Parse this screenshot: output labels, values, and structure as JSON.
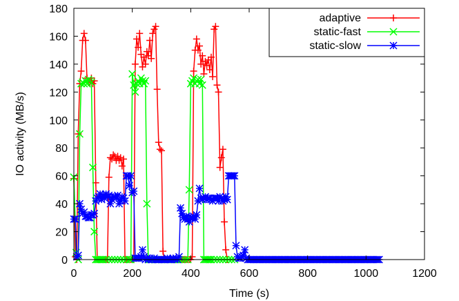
{
  "chart_data": {
    "type": "line",
    "xlabel": "Time (s)",
    "ylabel": "IO activity (MB/s)",
    "xlim": [
      0,
      1200
    ],
    "ylim": [
      0,
      180
    ],
    "xticks": [
      0,
      200,
      400,
      600,
      800,
      1000,
      1200
    ],
    "yticks": [
      0,
      20,
      40,
      60,
      80,
      100,
      120,
      140,
      160,
      180
    ],
    "grid": false,
    "legend_position": "top-right",
    "series": [
      {
        "name": "adaptive",
        "color": "#ff0000",
        "marker": "plus",
        "x": [
          0,
          5,
          10,
          15,
          20,
          25,
          30,
          35,
          40,
          45,
          50,
          55,
          60,
          65,
          70,
          75,
          80,
          85,
          90,
          95,
          100,
          105,
          110,
          115,
          120,
          125,
          130,
          135,
          140,
          145,
          150,
          155,
          160,
          165,
          170,
          175,
          180,
          185,
          190,
          195,
          200,
          205,
          210,
          215,
          220,
          225,
          230,
          235,
          240,
          245,
          250,
          255,
          260,
          265,
          270,
          275,
          280,
          285,
          290,
          295,
          300,
          305,
          310,
          315,
          320,
          325,
          330,
          335,
          340,
          345,
          350,
          355,
          360,
          365,
          370,
          375,
          380,
          385,
          390,
          395,
          400,
          405,
          410,
          415,
          420,
          425,
          430,
          435,
          440,
          445,
          450,
          455,
          460,
          465,
          470,
          475,
          480,
          485,
          490,
          495,
          500,
          505,
          510,
          515,
          520,
          525
        ],
        "y": [
          58,
          2,
          0,
          90,
          126,
          135,
          157,
          162,
          157,
          130,
          128,
          127,
          130,
          126,
          128,
          55,
          0,
          0,
          0,
          0,
          0,
          0,
          0,
          0,
          59,
          73,
          72,
          75,
          74,
          71,
          74,
          71,
          73,
          67,
          72,
          0,
          0,
          0,
          0,
          0,
          0,
          0,
          140,
          158,
          152,
          162,
          147,
          138,
          145,
          140,
          149,
          146,
          157,
          144,
          162,
          165,
          167,
          122,
          84,
          79,
          78,
          6,
          0,
          0,
          0,
          0,
          0,
          0,
          0,
          0,
          0,
          0,
          0,
          0,
          0,
          0,
          0,
          0,
          0,
          0,
          0,
          2,
          135,
          150,
          158,
          150,
          153,
          140,
          146,
          133,
          142,
          139,
          143,
          136,
          145,
          131,
          165,
          167,
          125,
          120,
          66,
          73,
          79,
          27,
          7,
          0
        ]
      },
      {
        "name": "static-fast",
        "color": "#00ff00",
        "marker": "cross",
        "x": [
          0,
          8,
          15,
          20,
          25,
          30,
          35,
          40,
          45,
          50,
          55,
          60,
          65,
          70,
          75,
          80,
          85,
          90,
          95,
          100,
          110,
          120,
          130,
          140,
          150,
          160,
          170,
          180,
          190,
          195,
          200,
          205,
          210,
          215,
          220,
          225,
          230,
          235,
          240,
          245,
          250,
          255,
          260,
          265,
          270,
          280,
          290,
          300,
          310,
          320,
          330,
          340,
          350,
          360,
          370,
          380,
          390,
          395,
          400,
          405,
          410,
          415,
          420,
          425,
          430,
          435,
          440,
          445,
          450,
          455,
          460,
          465,
          470,
          480,
          490,
          500,
          510,
          520,
          530,
          540,
          550
        ],
        "y": [
          59,
          5,
          0,
          90,
          126,
          127,
          126,
          128,
          126,
          129,
          128,
          127,
          66,
          20,
          0,
          0,
          0,
          0,
          0,
          0,
          0,
          0,
          0,
          0,
          0,
          0,
          0,
          0,
          0,
          0,
          133,
          125,
          120,
          126,
          128,
          126,
          130,
          128,
          126,
          128,
          40,
          0,
          0,
          0,
          0,
          0,
          0,
          0,
          0,
          0,
          0,
          0,
          0,
          0,
          0,
          0,
          0,
          50,
          126,
          128,
          130,
          126,
          128,
          129,
          126,
          129,
          125,
          0,
          0,
          0,
          0,
          0,
          0,
          0,
          0,
          0,
          0,
          0,
          0,
          0,
          0
        ]
      },
      {
        "name": "static-slow",
        "color": "#0000ff",
        "marker": "star",
        "x": [
          0,
          5,
          10,
          15,
          20,
          25,
          30,
          35,
          40,
          45,
          50,
          55,
          60,
          65,
          70,
          75,
          80,
          85,
          90,
          95,
          100,
          105,
          110,
          115,
          120,
          125,
          130,
          135,
          140,
          145,
          150,
          155,
          160,
          165,
          170,
          175,
          180,
          185,
          190,
          195,
          200,
          205,
          210,
          215,
          220,
          225,
          230,
          235,
          240,
          245,
          250,
          255,
          260,
          265,
          270,
          275,
          280,
          285,
          290,
          295,
          300,
          305,
          310,
          315,
          320,
          325,
          330,
          335,
          340,
          345,
          350,
          355,
          360,
          365,
          370,
          375,
          380,
          385,
          390,
          395,
          400,
          405,
          410,
          415,
          420,
          425,
          430,
          435,
          440,
          445,
          450,
          455,
          460,
          465,
          470,
          475,
          480,
          485,
          490,
          495,
          500,
          505,
          510,
          515,
          520,
          525,
          530,
          535,
          540,
          545,
          550,
          555,
          560,
          565,
          570,
          575,
          580,
          585,
          590,
          595,
          600,
          605,
          610,
          615,
          620,
          625,
          630,
          635,
          640,
          645,
          650,
          655,
          660,
          665,
          670,
          675,
          680,
          685,
          690,
          695,
          700,
          705,
          710,
          715,
          720,
          725,
          730,
          735,
          740,
          745,
          750,
          755,
          760,
          765,
          770,
          775,
          780,
          785,
          790,
          795,
          800,
          805,
          810,
          815,
          820,
          825,
          830,
          835,
          840,
          845,
          850,
          855,
          860,
          865,
          870,
          875,
          880,
          885,
          890,
          895,
          900,
          905,
          910,
          915,
          920,
          925,
          930,
          935,
          940,
          945,
          950,
          955,
          960,
          965,
          970,
          975,
          980,
          985,
          990,
          995,
          1000,
          1005,
          1010,
          1015,
          1020,
          1025,
          1030,
          1035,
          1040,
          1045
        ],
        "y": [
          29,
          29,
          2,
          3,
          40,
          36,
          33,
          34,
          31,
          31,
          30,
          30,
          32,
          32,
          33,
          42,
          44,
          45,
          47,
          43,
          46,
          44,
          47,
          45,
          46,
          40,
          43,
          45,
          45,
          44,
          46,
          40,
          42,
          45,
          44,
          42,
          60,
          60,
          53,
          60,
          48,
          49,
          1,
          1,
          1,
          1,
          2,
          7,
          2,
          0,
          1,
          0,
          1,
          0,
          0,
          1,
          0,
          0,
          0,
          0,
          0,
          0,
          0,
          0,
          1,
          0,
          0,
          0,
          1,
          0,
          1,
          0,
          2,
          37,
          33,
          30,
          29,
          31,
          29,
          27,
          30,
          30,
          31,
          29,
          32,
          42,
          51,
          44,
          43,
          44,
          45,
          43,
          44,
          44,
          43,
          42,
          44,
          44,
          44,
          42,
          45,
          44,
          42,
          43,
          45,
          43,
          60,
          60,
          60,
          60,
          60,
          10,
          2,
          1,
          1,
          2,
          3,
          7,
          1,
          0,
          0,
          0,
          0,
          0,
          0,
          0,
          0,
          0,
          0,
          0,
          0,
          0,
          0,
          0,
          0,
          0,
          0,
          0,
          0,
          0,
          0,
          0,
          0,
          0,
          0,
          0,
          0,
          0,
          0,
          0,
          0,
          0,
          0,
          0,
          0,
          0,
          0,
          0,
          0,
          0,
          0,
          0,
          0,
          0,
          0,
          0,
          0,
          0,
          0,
          0,
          0,
          0,
          0,
          0,
          0,
          0,
          0,
          0,
          0,
          0,
          0,
          0,
          0,
          0,
          0,
          0,
          0,
          0,
          0,
          0,
          0,
          0,
          0,
          0,
          0,
          0,
          0,
          0,
          0,
          0,
          0,
          0,
          0,
          0,
          0,
          0,
          0,
          0,
          0,
          0
        ]
      }
    ]
  }
}
